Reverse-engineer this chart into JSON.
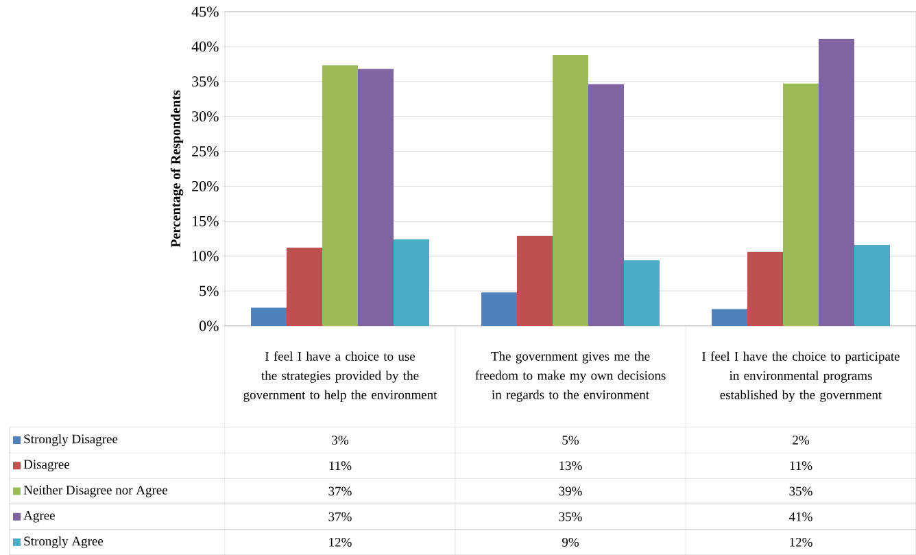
{
  "chart_data": {
    "type": "bar",
    "ylabel": "Percentage of Respondents",
    "categories": [
      "I feel I have a choice to use the strategies provided by the government to help the environment",
      "The government gives me the freedom to make my own decisions in regards to the environment",
      "I feel I have the choice to participate in environmental programs established by the government"
    ],
    "series": [
      {
        "name": "Strongly Disagree",
        "color": "#4f81bd",
        "values": [
          2.6,
          4.8,
          2.4
        ],
        "value_labels": [
          "3%",
          "5%",
          "2%"
        ]
      },
      {
        "name": "Disagree",
        "color": "#c0504d",
        "values": [
          11.2,
          12.9,
          10.6
        ],
        "value_labels": [
          "11%",
          "13%",
          "11%"
        ]
      },
      {
        "name": "Neither Disagree nor Agree",
        "color": "#9bbb59",
        "values": [
          37.3,
          38.8,
          34.7
        ],
        "value_labels": [
          "37%",
          "39%",
          "35%"
        ]
      },
      {
        "name": "Agree",
        "color": "#8064a2",
        "values": [
          36.8,
          34.6,
          41.1
        ],
        "value_labels": [
          "37%",
          "35%",
          "41%"
        ]
      },
      {
        "name": "Strongly Agree",
        "color": "#4bacc6",
        "values": [
          12.4,
          9.4,
          11.6
        ],
        "value_labels": [
          "12%",
          "9%",
          "12%"
        ]
      }
    ],
    "ylim": [
      0,
      45
    ],
    "yticks": [
      {
        "value": 0,
        "label": "0%"
      },
      {
        "value": 5,
        "label": "5%"
      },
      {
        "value": 10,
        "label": "10%"
      },
      {
        "value": 15,
        "label": "15%"
      },
      {
        "value": 20,
        "label": "20%"
      },
      {
        "value": 25,
        "label": "25%"
      },
      {
        "value": 30,
        "label": "30%"
      },
      {
        "value": 35,
        "label": "35%"
      },
      {
        "value": 40,
        "label": "40%"
      },
      {
        "value": 45,
        "label": "45%"
      }
    ],
    "grid": "y",
    "legend": "bottom"
  }
}
